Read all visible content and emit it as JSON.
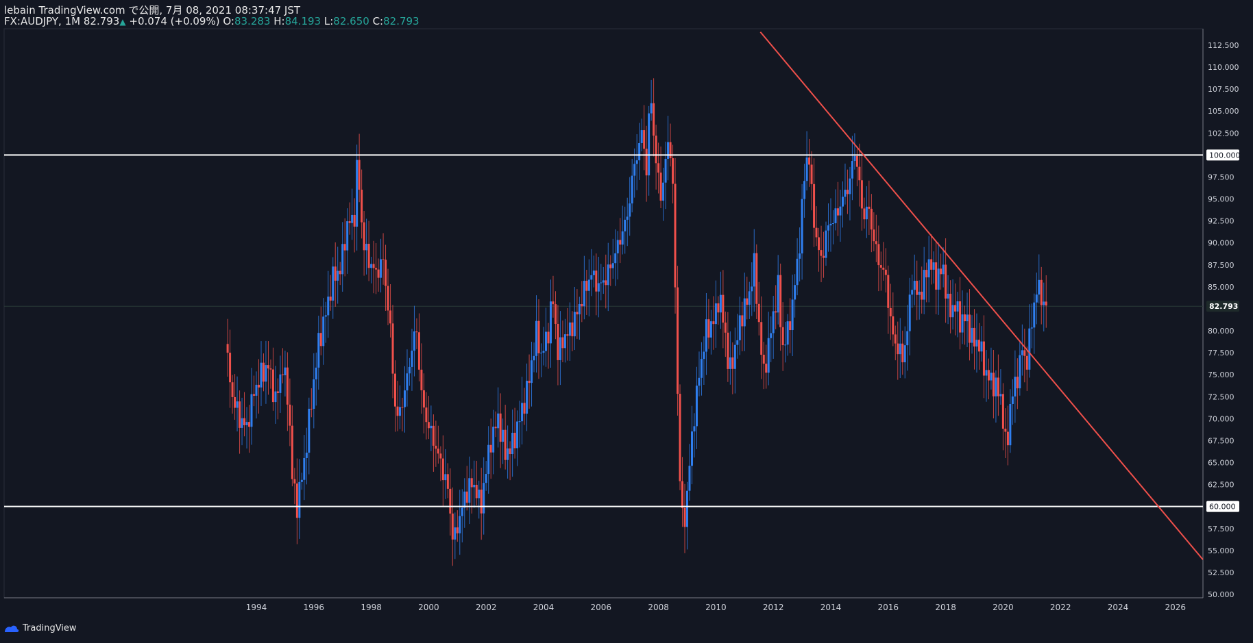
{
  "header": {
    "line1": "lebain TradingView.com で公開, 7月 08, 2021 08:37:47 JST",
    "symbol": "FX:AUDJPY, 1M",
    "last": "82.793",
    "change": "+0.074 (+0.09%)",
    "o_label": "O:",
    "o_value": "83.283",
    "h_label": "H:",
    "h_value": "84.193",
    "l_label": "L:",
    "l_value": "82.650",
    "c_label": "C:",
    "c_value": "82.793"
  },
  "footer": {
    "brand": "TradingView"
  },
  "colors": {
    "background": "#131722",
    "up": "#2f7ff0",
    "down": "#f0504b",
    "trendline": "#f0504b",
    "hline": "#ffffff",
    "grid": "#2a2e39",
    "text": "#d1d4dc"
  },
  "chart_data": {
    "type": "candlestick",
    "symbol": "FX:AUDJPY",
    "interval": "1M",
    "ylim": [
      50.0,
      113.5
    ],
    "y_ticks": [
      50.0,
      52.5,
      55.0,
      57.5,
      60.0,
      62.5,
      65.0,
      67.5,
      70.0,
      72.5,
      75.0,
      77.5,
      80.0,
      82.5,
      85.0,
      87.5,
      90.0,
      92.5,
      95.0,
      97.5,
      100.0,
      102.5,
      105.0,
      107.5,
      110.0,
      112.5
    ],
    "y_tick_labels": [
      "50.000",
      "52.500",
      "55.000",
      "57.500",
      "60.000",
      "62.500",
      "65.000",
      "67.500",
      "70.000",
      "72.500",
      "75.000",
      "77.500",
      "80.000",
      "82.500",
      "85.000",
      "87.500",
      "90.000",
      "92.500",
      "95.000",
      "97.500",
      "100.000",
      "102.500",
      "105.000",
      "107.500",
      "110.000",
      "112.500"
    ],
    "x_ticks": [
      "1994",
      "1996",
      "1998",
      "2000",
      "2002",
      "2004",
      "2006",
      "2008",
      "2010",
      "2012",
      "2014",
      "2016",
      "2018",
      "2020",
      "2022",
      "2024",
      "2026"
    ],
    "horizontal_lines": [
      {
        "price": 100.0,
        "label": "100.000"
      },
      {
        "price": 60.0,
        "label": "60.000"
      }
    ],
    "last_price": {
      "price": 82.793,
      "label": "82.793"
    },
    "trendline": {
      "start": {
        "date": 2011.55,
        "price": 114.0
      },
      "end": {
        "date": 2027.0,
        "price": 53.8
      }
    },
    "monthly_path": [
      [
        1993.0,
        78.5
      ],
      [
        1993.25,
        72.5
      ],
      [
        1993.5,
        70.0
      ],
      [
        1993.75,
        69.0
      ],
      [
        1994.0,
        73.0
      ],
      [
        1994.25,
        75.0
      ],
      [
        1994.5,
        76.0
      ],
      [
        1994.75,
        72.0
      ],
      [
        1995.0,
        76.0
      ],
      [
        1995.2,
        72.0
      ],
      [
        1995.35,
        62.5
      ],
      [
        1995.5,
        60.2
      ],
      [
        1995.75,
        65.0
      ],
      [
        1996.0,
        72.0
      ],
      [
        1996.25,
        78.5
      ],
      [
        1996.5,
        82.0
      ],
      [
        1996.75,
        86.0
      ],
      [
        1997.0,
        87.0
      ],
      [
        1997.25,
        92.0
      ],
      [
        1997.5,
        93.0
      ],
      [
        1997.6,
        99.5
      ],
      [
        1997.8,
        90.0
      ],
      [
        1998.0,
        88.0
      ],
      [
        1998.25,
        86.5
      ],
      [
        1998.5,
        88.0
      ],
      [
        1998.75,
        80.0
      ],
      [
        1998.9,
        72.0
      ],
      [
        1999.0,
        70.0
      ],
      [
        1999.25,
        73.0
      ],
      [
        1999.5,
        78.0
      ],
      [
        1999.65,
        80.5
      ],
      [
        1999.85,
        72.0
      ],
      [
        2000.0,
        70.0
      ],
      [
        2000.25,
        67.5
      ],
      [
        2000.5,
        65.0
      ],
      [
        2000.75,
        62.0
      ],
      [
        2000.9,
        57.0
      ],
      [
        2001.0,
        56.5
      ],
      [
        2001.25,
        60.0
      ],
      [
        2001.5,
        62.5
      ],
      [
        2001.75,
        62.0
      ],
      [
        2001.9,
        59.5
      ],
      [
        2002.0,
        62.5
      ],
      [
        2002.25,
        67.5
      ],
      [
        2002.5,
        70.0
      ],
      [
        2002.75,
        66.0
      ],
      [
        2003.0,
        67.0
      ],
      [
        2003.25,
        70.0
      ],
      [
        2003.5,
        73.0
      ],
      [
        2003.75,
        78.0
      ],
      [
        2003.85,
        80.0
      ],
      [
        2004.0,
        77.0
      ],
      [
        2004.25,
        80.0
      ],
      [
        2004.4,
        84.0
      ],
      [
        2004.6,
        77.0
      ],
      [
        2004.75,
        79.0
      ],
      [
        2005.0,
        80.0
      ],
      [
        2005.25,
        82.0
      ],
      [
        2005.5,
        84.5
      ],
      [
        2005.75,
        86.5
      ],
      [
        2006.0,
        85.0
      ],
      [
        2006.25,
        86.0
      ],
      [
        2006.5,
        88.0
      ],
      [
        2006.75,
        90.5
      ],
      [
        2007.0,
        93.0
      ],
      [
        2007.2,
        98.0
      ],
      [
        2007.4,
        101.0
      ],
      [
        2007.55,
        103.0
      ],
      [
        2007.65,
        97.0
      ],
      [
        2007.8,
        107.5
      ],
      [
        2008.0,
        99.0
      ],
      [
        2008.2,
        95.0
      ],
      [
        2008.4,
        101.5
      ],
      [
        2008.55,
        100.0
      ],
      [
        2008.7,
        81.0
      ],
      [
        2008.8,
        65.0
      ],
      [
        2008.95,
        57.0
      ],
      [
        2009.1,
        62.0
      ],
      [
        2009.25,
        68.0
      ],
      [
        2009.5,
        75.0
      ],
      [
        2009.75,
        80.0
      ],
      [
        2010.0,
        81.0
      ],
      [
        2010.2,
        84.0
      ],
      [
        2010.4,
        80.0
      ],
      [
        2010.55,
        75.0
      ],
      [
        2010.75,
        78.0
      ],
      [
        2011.0,
        82.0
      ],
      [
        2011.25,
        84.0
      ],
      [
        2011.4,
        88.0
      ],
      [
        2011.6,
        80.0
      ],
      [
        2011.75,
        75.0
      ],
      [
        2012.0,
        80.0
      ],
      [
        2012.25,
        85.0
      ],
      [
        2012.4,
        78.0
      ],
      [
        2012.6,
        80.0
      ],
      [
        2012.75,
        83.0
      ],
      [
        2013.0,
        90.0
      ],
      [
        2013.15,
        97.0
      ],
      [
        2013.3,
        101.0
      ],
      [
        2013.45,
        94.0
      ],
      [
        2013.6,
        90.0
      ],
      [
        2013.75,
        88.0
      ],
      [
        2014.0,
        92.0
      ],
      [
        2014.25,
        93.0
      ],
      [
        2014.5,
        95.0
      ],
      [
        2014.75,
        97.0
      ],
      [
        2014.9,
        100.5
      ],
      [
        2015.0,
        99.0
      ],
      [
        2015.2,
        93.0
      ],
      [
        2015.4,
        94.0
      ],
      [
        2015.6,
        90.0
      ],
      [
        2015.75,
        88.0
      ],
      [
        2016.0,
        86.0
      ],
      [
        2016.2,
        80.0
      ],
      [
        2016.4,
        78.0
      ],
      [
        2016.6,
        77.0
      ],
      [
        2016.75,
        80.0
      ],
      [
        2016.9,
        86.0
      ],
      [
        2017.1,
        84.0
      ],
      [
        2017.25,
        84.5
      ],
      [
        2017.5,
        88.0
      ],
      [
        2017.75,
        86.0
      ],
      [
        2018.0,
        87.0
      ],
      [
        2018.2,
        82.0
      ],
      [
        2018.4,
        83.0
      ],
      [
        2018.6,
        81.0
      ],
      [
        2018.8,
        81.5
      ],
      [
        2019.0,
        79.0
      ],
      [
        2019.25,
        78.5
      ],
      [
        2019.5,
        75.0
      ],
      [
        2019.75,
        74.0
      ],
      [
        2020.0,
        72.5
      ],
      [
        2020.2,
        66.0
      ],
      [
        2020.35,
        72.0
      ],
      [
        2020.6,
        75.0
      ],
      [
        2020.75,
        78.0
      ],
      [
        2020.9,
        76.0
      ],
      [
        2021.0,
        79.0
      ],
      [
        2021.2,
        84.0
      ],
      [
        2021.35,
        85.0
      ],
      [
        2021.5,
        82.8
      ]
    ]
  }
}
